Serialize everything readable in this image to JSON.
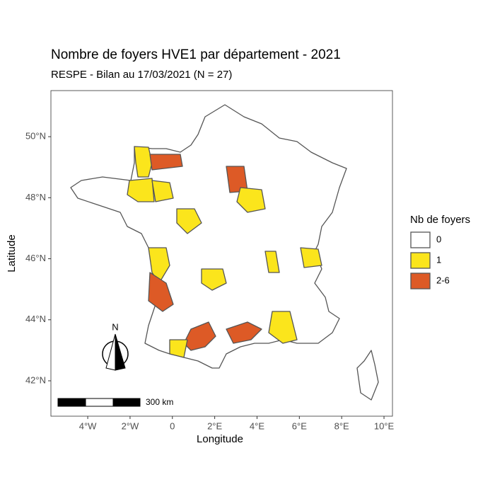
{
  "chart_data": {
    "type": "map",
    "title": "Nombre de foyers HVE1 par département - 2021",
    "subtitle": "RESPE - Bilan au 17/03/2021 (N = 27)",
    "x_label": "Longitude",
    "y_label": "Latitude",
    "xlim": [
      -5.74,
      10.4
    ],
    "ylim": [
      40.84,
      51.51
    ],
    "xticks": [
      {
        "value": -4,
        "label": "4°W"
      },
      {
        "value": -2,
        "label": "2°W"
      },
      0,
      {
        "value": 2,
        "label": "2°E"
      },
      {
        "value": 4,
        "label": "4°E"
      },
      {
        "value": 6,
        "label": "6°E"
      },
      {
        "value": 8,
        "label": "8°E"
      },
      {
        "value": 10,
        "label": "10°E"
      }
    ],
    "yticks": [
      {
        "value": 42,
        "label": "42°N"
      },
      {
        "value": 44,
        "label": "44°N"
      },
      {
        "value": 46,
        "label": "46°N"
      },
      {
        "value": 48,
        "label": "48°N"
      },
      {
        "value": 50,
        "label": "50°N"
      }
    ],
    "legend": {
      "title": "Nb de foyers",
      "entries": [
        {
          "label": "0",
          "color": "#ffffff"
        },
        {
          "label": "1",
          "color": "#fbe51c"
        },
        {
          "label": "2-6",
          "color": "#dd5a26"
        }
      ]
    },
    "scale_bar": "300 km",
    "north": "N"
  }
}
